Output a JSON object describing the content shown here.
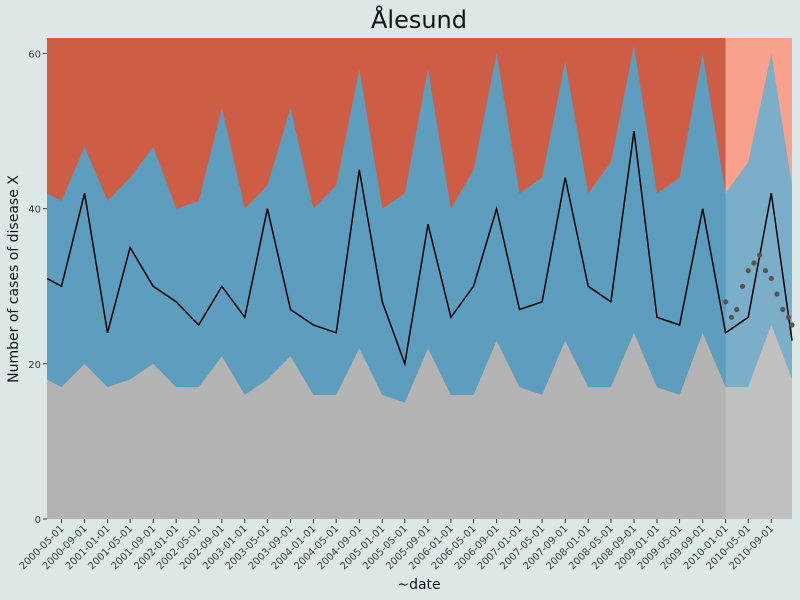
{
  "chart_data": {
    "type": "area",
    "title": "Ålesund",
    "xlabel": "~date",
    "ylabel": "Number of cases of disease X",
    "ylim": [
      0,
      62
    ],
    "xlim": [
      "2000-02-14",
      "2010-12-20"
    ],
    "y_ticks": [
      0,
      20,
      40,
      60
    ],
    "x_ticks": [
      "2000-05-01",
      "2000-09-01",
      "2001-01-01",
      "2001-05-01",
      "2001-09-01",
      "2002-01-01",
      "2002-05-01",
      "2002-09-01",
      "2003-01-01",
      "2003-05-01",
      "2003-09-01",
      "2004-01-01",
      "2004-05-01",
      "2004-09-01",
      "2005-01-01",
      "2005-05-01",
      "2005-09-01",
      "2006-01-01",
      "2006-05-01",
      "2006-09-01",
      "2007-01-01",
      "2007-05-01",
      "2007-09-01",
      "2008-01-01",
      "2008-05-01",
      "2008-09-01",
      "2009-01-01",
      "2009-05-01",
      "2009-09-01",
      "2010-01-01",
      "2010-05-01",
      "2010-09-01"
    ],
    "prediction_start": "2010-01-01",
    "grid": false,
    "legend": "none",
    "colors": {
      "background": "#dbe8e7",
      "band_low": "#b3b3b3",
      "band_mid": "#5d9dbd",
      "band_high": "#cd5d44",
      "pred_low": "#b9b9b9",
      "pred_mid": "#86c5e1",
      "pred_high": "#f98d76",
      "line": "#000000",
      "points": "#555555"
    },
    "series": [
      {
        "name": "",
        "x": [
          "2000-02-14",
          "2000-05-01",
          "2000-09-01",
          "2001-01-01",
          "2001-05-01",
          "2001-09-01",
          "2002-01-01",
          "2002-05-01",
          "2002-09-01",
          "2003-01-01",
          "2003-05-01",
          "2003-09-01",
          "2004-01-01",
          "2004-05-01",
          "2004-09-01",
          "2005-01-01",
          "2005-05-01",
          "2005-09-01",
          "2006-01-01",
          "2006-05-01",
          "2006-09-01",
          "2007-01-01",
          "2007-05-01",
          "2007-09-01",
          "2008-01-01",
          "2008-05-01",
          "2008-09-01",
          "2009-01-01",
          "2009-05-01",
          "2009-09-01",
          "2010-01-01",
          "2010-05-01",
          "2010-09-01",
          "2010-12-20"
        ],
        "y": [
          31,
          30,
          42,
          24,
          35,
          30,
          28,
          25,
          30,
          26,
          40,
          27,
          25,
          24,
          45,
          28,
          20,
          38,
          26,
          30,
          40,
          27,
          28,
          44,
          30,
          28,
          50,
          26,
          25,
          40,
          24,
          26,
          42,
          23
        ]
      },
      {
        "name": "",
        "x": [
          "2010-01-01",
          "2010-02-01",
          "2010-03-01",
          "2010-04-01",
          "2010-05-01",
          "2010-06-01",
          "2010-07-01",
          "2010-08-01",
          "2010-09-01",
          "2010-10-01",
          "2010-11-01",
          "2010-12-01",
          "2010-12-20"
        ],
        "y": [
          28,
          26,
          27,
          30,
          32,
          33,
          34,
          32,
          31,
          29,
          27,
          26,
          25
        ]
      }
    ],
    "bands": {
      "x": [
        "2000-02-14",
        "2000-05-01",
        "2000-09-01",
        "2001-01-01",
        "2001-05-01",
        "2001-09-01",
        "2002-01-01",
        "2002-05-01",
        "2002-09-01",
        "2003-01-01",
        "2003-05-01",
        "2003-09-01",
        "2004-01-01",
        "2004-05-01",
        "2004-09-01",
        "2005-01-01",
        "2005-05-01",
        "2005-09-01",
        "2006-01-01",
        "2006-05-01",
        "2006-09-01",
        "2007-01-01",
        "2007-05-01",
        "2007-09-01",
        "2008-01-01",
        "2008-05-01",
        "2008-09-01",
        "2009-01-01",
        "2009-05-01",
        "2009-09-01",
        "2010-01-01",
        "2010-05-01",
        "2010-09-01",
        "2010-12-20"
      ],
      "low": [
        18,
        17,
        20,
        17,
        18,
        20,
        17,
        17,
        21,
        16,
        18,
        21,
        16,
        16,
        22,
        16,
        15,
        22,
        16,
        16,
        23,
        17,
        16,
        23,
        17,
        17,
        24,
        17,
        16,
        24,
        17,
        17,
        25,
        18
      ],
      "high": [
        42,
        41,
        48,
        41,
        44,
        48,
        40,
        41,
        53,
        40,
        43,
        53,
        40,
        43,
        58,
        40,
        42,
        58,
        40,
        45,
        60,
        42,
        44,
        59,
        42,
        46,
        61,
        42,
        44,
        60,
        42,
        46,
        60,
        43
      ]
    }
  }
}
